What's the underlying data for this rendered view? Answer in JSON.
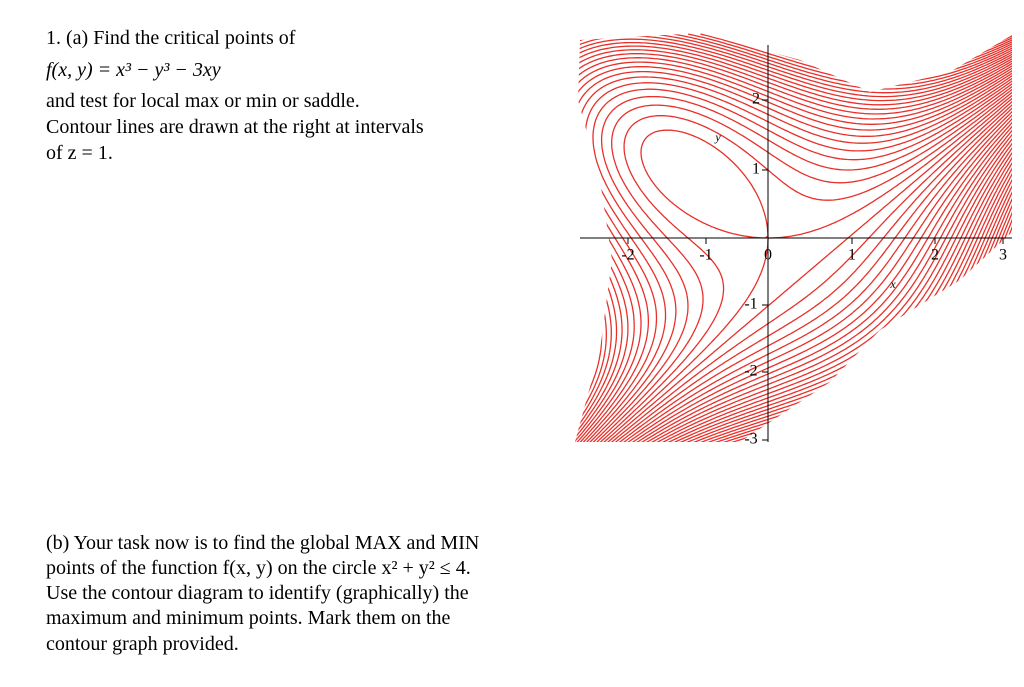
{
  "part_a": {
    "lines": [
      "1. (a) Find the critical points of",
      "and test for local max or min or saddle.",
      "Contour lines are drawn at the right at intervals",
      "of z = 1."
    ],
    "formula": "f(x, y) = x³ − y³ − 3xy"
  },
  "part_b": {
    "lines": [
      "(b) Your task now is to find the global MAX and MIN",
      "points of the function f(x, y) on the circle x² + y² ≤ 4.",
      "Use the contour diagram to identify (graphically) the",
      "maximum and minimum points.  Mark them on the",
      "contour graph provided."
    ]
  },
  "plot": {
    "x_ticks": [
      "-2",
      "-1",
      "0",
      "1",
      "2",
      "3"
    ],
    "y_ticks": [
      "2",
      "1",
      "-1",
      "-2",
      "-3"
    ],
    "x_label": "x",
    "y_label": "y"
  }
}
